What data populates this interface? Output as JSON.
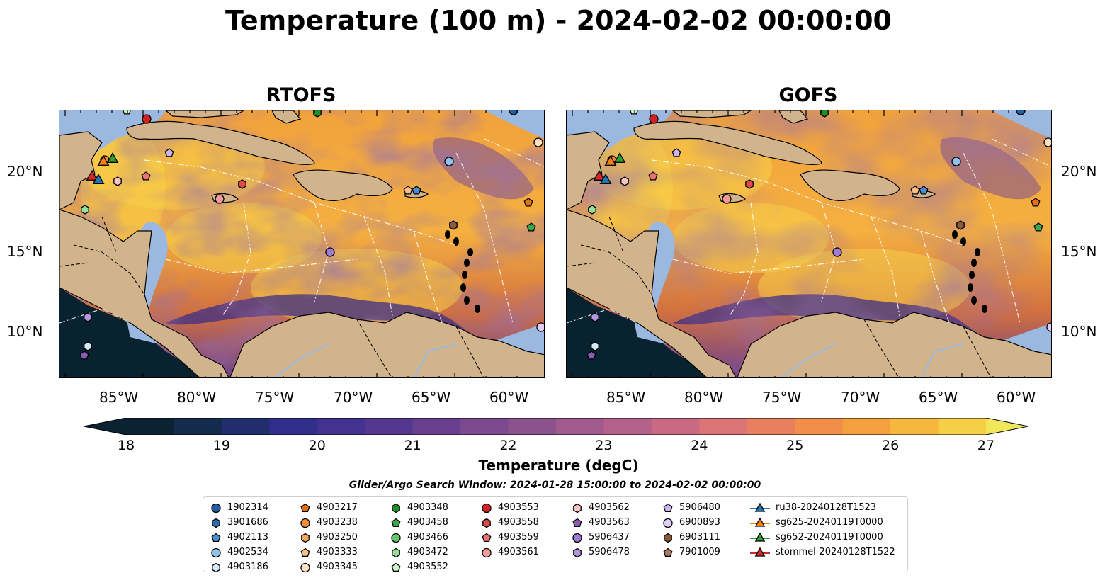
{
  "title": "Temperature (100 m) - 2024-02-02 00:00:00",
  "panels": [
    {
      "title": "RTOFS"
    },
    {
      "title": "GOFS"
    }
  ],
  "axes": {
    "lon_ticks": [
      "85°W",
      "80°W",
      "75°W",
      "70°W",
      "65°W",
      "60°W"
    ],
    "lat_ticks": [
      "20°N",
      "15°N",
      "10°N"
    ]
  },
  "colorbar": {
    "label": "Temperature (degC)",
    "ticks": [
      "18",
      "19",
      "20",
      "21",
      "22",
      "23",
      "24",
      "25",
      "26",
      "27"
    ],
    "min": 18,
    "max": 27,
    "step": 0.5,
    "colors": [
      "#0b2232",
      "#152b4d",
      "#212d6d",
      "#312f8a",
      "#43328f",
      "#56378f",
      "#68408e",
      "#7a498e",
      "#8c528d",
      "#a05a8c",
      "#b4628a",
      "#c86b82",
      "#da7475",
      "#e8805f",
      "#f08e4a",
      "#f5a03e",
      "#f6b73d",
      "#f5cf45",
      "#f0e85a"
    ]
  },
  "colors": {
    "land": "#d2b48c",
    "shallow_water": "#9bb8e0",
    "deep_water": "#09222f"
  },
  "legend": {
    "title": "Glider/Argo Search Window: 2024-01-28 15:00:00 to 2024-02-02 00:00:00",
    "columns": [
      [
        {
          "label": "1902314",
          "marker": "circle",
          "color": "#1f5fa0"
        },
        {
          "label": "3901686",
          "marker": "hexagon",
          "color": "#2a6fb0"
        },
        {
          "label": "4902113",
          "marker": "pentagon",
          "color": "#4a90d0"
        },
        {
          "label": "4902534",
          "marker": "circle",
          "color": "#8fc3ec"
        },
        {
          "label": "4903186",
          "marker": "hexagon",
          "color": "#d6eafa"
        }
      ],
      [
        {
          "label": "4903217",
          "marker": "pentagon",
          "color": "#e8700f"
        },
        {
          "label": "4903238",
          "marker": "circle",
          "color": "#f39035"
        },
        {
          "label": "4903250",
          "marker": "hexagon",
          "color": "#f7a85a"
        },
        {
          "label": "4903333",
          "marker": "pentagon",
          "color": "#fbc08a"
        },
        {
          "label": "4903345",
          "marker": "circle",
          "color": "#fde1c4"
        }
      ],
      [
        {
          "label": "4903348",
          "marker": "hexagon",
          "color": "#1f8f2a"
        },
        {
          "label": "4903458",
          "marker": "pentagon",
          "color": "#3aa84a"
        },
        {
          "label": "4903466",
          "marker": "circle",
          "color": "#66c66a"
        },
        {
          "label": "4903472",
          "marker": "hexagon",
          "color": "#99e09a"
        },
        {
          "label": "4903552",
          "marker": "pentagon",
          "color": "#cdf5c9"
        }
      ],
      [
        {
          "label": "4903553",
          "marker": "circle",
          "color": "#d42222"
        },
        {
          "label": "4903558",
          "marker": "hexagon",
          "color": "#e04a4a"
        },
        {
          "label": "4903559",
          "marker": "pentagon",
          "color": "#ec7373"
        },
        {
          "label": "4903561",
          "marker": "circle",
          "color": "#f59a9a"
        }
      ],
      [
        {
          "label": "4903562",
          "marker": "hexagon",
          "color": "#fbc4c4"
        },
        {
          "label": "4903563",
          "marker": "pentagon",
          "color": "#8b5bb8"
        },
        {
          "label": "5906437",
          "marker": "circle",
          "color": "#a07ad0"
        },
        {
          "label": "5906478",
          "marker": "hexagon",
          "color": "#b597e0"
        }
      ],
      [
        {
          "label": "5906480",
          "marker": "pentagon",
          "color": "#cdb4ee"
        },
        {
          "label": "6900893",
          "marker": "circle",
          "color": "#e2cdf8"
        },
        {
          "label": "6903111",
          "marker": "hexagon",
          "color": "#8a5a3c"
        },
        {
          "label": "7901009",
          "marker": "pentagon",
          "color": "#a87862"
        }
      ],
      [
        {
          "label": "ru38-20240128T1523",
          "marker": "triangle",
          "color": "#1f77b4"
        },
        {
          "label": "sg625-20240119T0000",
          "marker": "triangle",
          "color": "#ff7f0e"
        },
        {
          "label": "sg652-20240119T0000",
          "marker": "triangle",
          "color": "#2ca02c"
        },
        {
          "label": "stommel-20240128T1522",
          "marker": "triangle",
          "color": "#d62728"
        }
      ]
    ]
  }
}
